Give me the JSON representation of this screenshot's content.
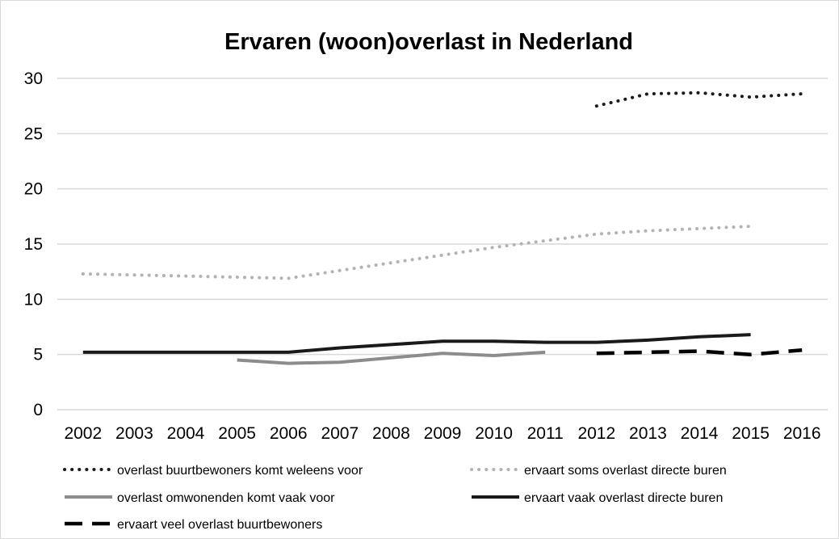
{
  "chart_data": {
    "type": "line",
    "title": "Ervaren (woon)overlast in Nederland",
    "xlabel": "",
    "ylabel": "",
    "categories": [
      "2002",
      "2003",
      "2004",
      "2005",
      "2006",
      "2007",
      "2008",
      "2009",
      "2010",
      "2011",
      "2012",
      "2013",
      "2014",
      "2015",
      "2016"
    ],
    "ylim": [
      0,
      30
    ],
    "yticks": [
      0,
      5,
      10,
      15,
      20,
      25,
      30
    ],
    "grid": true,
    "legend_position": "bottom",
    "series": [
      {
        "name": "overlast buurtbewoners komt weleens voor",
        "color": "#1a1a1a",
        "style": "dotted",
        "values": [
          null,
          null,
          null,
          null,
          null,
          null,
          null,
          null,
          null,
          null,
          27.5,
          28.6,
          28.7,
          28.3,
          28.6
        ]
      },
      {
        "name": "ervaart soms overlast directe buren",
        "color": "#b3b3b3",
        "style": "dotted",
        "values": [
          12.3,
          12.2,
          12.1,
          12.0,
          11.9,
          12.6,
          13.3,
          14.0,
          14.7,
          15.3,
          15.9,
          16.2,
          16.4,
          16.6,
          null
        ]
      },
      {
        "name": "overlast omwonenden komt vaak voor",
        "color": "#8c8c8c",
        "style": "solid",
        "values": [
          null,
          null,
          null,
          4.5,
          4.2,
          4.3,
          4.7,
          5.1,
          4.9,
          5.2,
          null,
          null,
          null,
          null,
          null
        ]
      },
      {
        "name": "ervaart vaak overlast directe buren",
        "color": "#1a1a1a",
        "style": "solid",
        "values": [
          5.2,
          5.2,
          5.2,
          5.2,
          5.2,
          5.6,
          5.9,
          6.2,
          6.2,
          6.1,
          6.1,
          6.3,
          6.6,
          6.8,
          null
        ]
      },
      {
        "name": "ervaart veel overlast buurtbewoners",
        "color": "#000000",
        "style": "dashed",
        "values": [
          null,
          null,
          null,
          null,
          null,
          null,
          null,
          null,
          null,
          null,
          5.1,
          5.2,
          5.3,
          5.0,
          5.4
        ]
      }
    ]
  }
}
